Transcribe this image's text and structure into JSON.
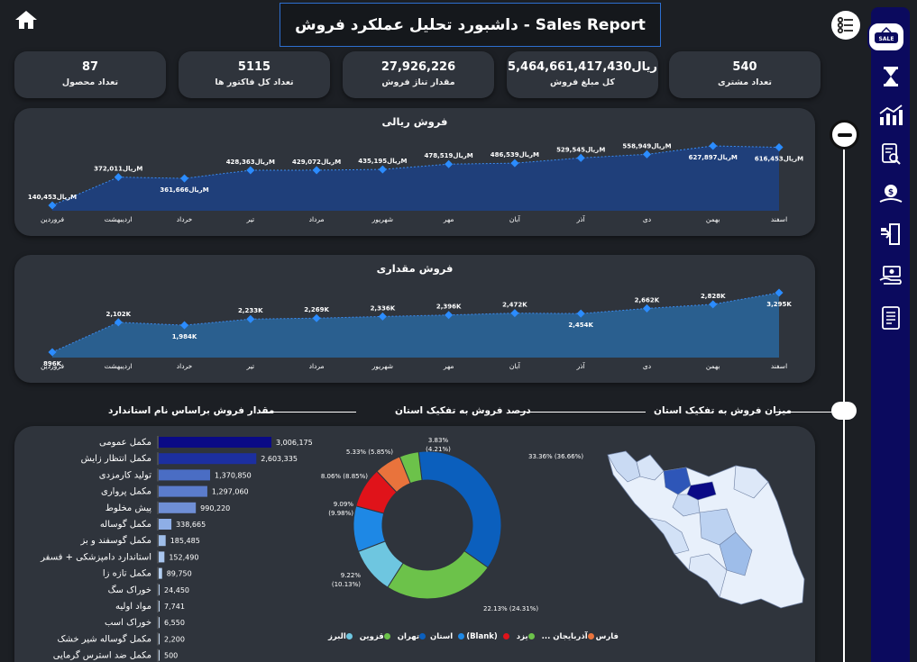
{
  "header": {
    "title": "داشبورد تحلیل عملکرد فروش - Sales Report"
  },
  "kpis": [
    {
      "value": "87",
      "label": "تعداد محصول"
    },
    {
      "value": "5115",
      "label": "تعداد کل فاکتور ها"
    },
    {
      "value": "27,926,226",
      "label": "مقدار تناژ فروش"
    },
    {
      "value": "ریال5,464,661,417,430",
      "label": "کل مبلغ فروش"
    },
    {
      "value": "540",
      "label": "تعداد مشتری"
    }
  ],
  "months": [
    "فروردین",
    "اردیبهشت",
    "خرداد",
    "تیر",
    "مرداد",
    "شهریور",
    "مهر",
    "آبان",
    "آذر",
    "دی",
    "بهمن",
    "اسفند"
  ],
  "sales_rial": {
    "title": "فروش ریالی",
    "values": [
      140453,
      372011,
      361666,
      428363,
      429072,
      435195,
      478519,
      486539,
      529545,
      558949,
      627897,
      616453
    ],
    "labels": [
      "ریال140,453M",
      "ریال372,011M",
      "ریال361,666M",
      "ریال428,363M",
      "ریال429,072M",
      "ریال435,195M",
      "ریال478,519M",
      "ریال486,539M",
      "ریال529,545M",
      "ریال558,949M",
      "ریال627,897M",
      "ریال616,453M"
    ]
  },
  "sales_qty": {
    "title": "فروش مقداری",
    "values": [
      896,
      2102,
      1984,
      2233,
      2269,
      2336,
      2396,
      2472,
      2454,
      2662,
      2828,
      3295
    ],
    "labels": [
      "896K",
      "2,102K",
      "1,984K",
      "2,233K",
      "2,269K",
      "2,336K",
      "2,396K",
      "2,472K",
      "2,454K",
      "2,662K",
      "2,828K",
      "3,295K"
    ]
  },
  "sections": {
    "map_title": "میزان فروش به تفکیک استان",
    "donut_title": "درصد فروش به تفکیک استان",
    "bars_title": "مقدار فروش براساس نام استاندارد"
  },
  "bars": {
    "items": [
      {
        "label": "مکمل عمومی",
        "value": 3006175,
        "text": "3,006,175",
        "color": "#0a0a86"
      },
      {
        "label": "مکمل انتظار زایش",
        "value": 2603335,
        "text": "2,603,335",
        "color": "#1c2fa0"
      },
      {
        "label": "تولید کارمزدی",
        "value": 1370850,
        "text": "1,370,850",
        "color": "#4a6dc4"
      },
      {
        "label": "مکمل پرواری",
        "value": 1297060,
        "text": "1,297,060",
        "color": "#5b7ccc"
      },
      {
        "label": "پیش مخلوط",
        "value": 990220,
        "text": "990,220",
        "color": "#6f8fd6"
      },
      {
        "label": "مکمل گوساله",
        "value": 338665,
        "text": "338,665",
        "color": "#8eaee6"
      },
      {
        "label": "مکمل گوسفند و بز",
        "value": 185485,
        "text": "185,485",
        "color": "#9ebde9"
      },
      {
        "label": "استاندارد دامپزشکی + فسفر",
        "value": 152490,
        "text": "152,490",
        "color": "#a8c5ee"
      },
      {
        "label": "مکمل تازه زا",
        "value": 89750,
        "text": "89,750",
        "color": "#b4cff2"
      },
      {
        "label": "خوراک سگ",
        "value": 24450,
        "text": "24,450",
        "color": "#bcd5f4"
      },
      {
        "label": "مواد اولیه",
        "value": 7741,
        "text": "7,741",
        "color": "#c4dbf6"
      },
      {
        "label": "خوراک اسب",
        "value": 6550,
        "text": "6,550",
        "color": "#c8ddf6"
      },
      {
        "label": "مکمل گوساله شیر خشک",
        "value": 2200,
        "text": "2,200",
        "color": "#cce0f7"
      },
      {
        "label": "مکمل ضد استرس گرمایی",
        "value": 500,
        "text": "500",
        "color": "#d0e3f8"
      }
    ]
  },
  "donut": {
    "legend_title": "استان",
    "segments": [
      {
        "name": "تهران",
        "pct": 33.36,
        "label": "33.36% (36.66%)",
        "color": "#0b5fbd"
      },
      {
        "name": "قزوین",
        "pct": 22.13,
        "label": "22.13% (24.31%)",
        "color": "#6cc24a"
      },
      {
        "name": "البرز",
        "pct": 9.22,
        "label": "9.22%\n(10.13%)",
        "color": "#6ec6e0"
      },
      {
        "name": "(Blank)",
        "pct": 9.09,
        "label": "9.09%\n(9.98%)",
        "color": "#1e88e5"
      },
      {
        "name": "فارس",
        "pct": 8.06,
        "label": "8.06% (8.85%)",
        "color": "#e0131a"
      },
      {
        "name": "آذربایجان ...",
        "pct": 5.33,
        "label": "5.33% (5.85%)",
        "color": "#e9733c"
      },
      {
        "name": "یزد",
        "pct": 3.83,
        "label": "3.83%\n(4.21%)",
        "color": "#6cc24a"
      }
    ]
  },
  "colors": {
    "accent": "#0b0a5e",
    "panel": "#2f343c",
    "area": "#1f3f7a",
    "area2": "#2a5f8f"
  },
  "sidebar": {
    "items": [
      "sale-badge-icon",
      "hourglass-icon",
      "bar-chart-icon",
      "search-report-icon",
      "money-icon",
      "exit-icon",
      "cash-hand-icon",
      "document-icon"
    ]
  }
}
